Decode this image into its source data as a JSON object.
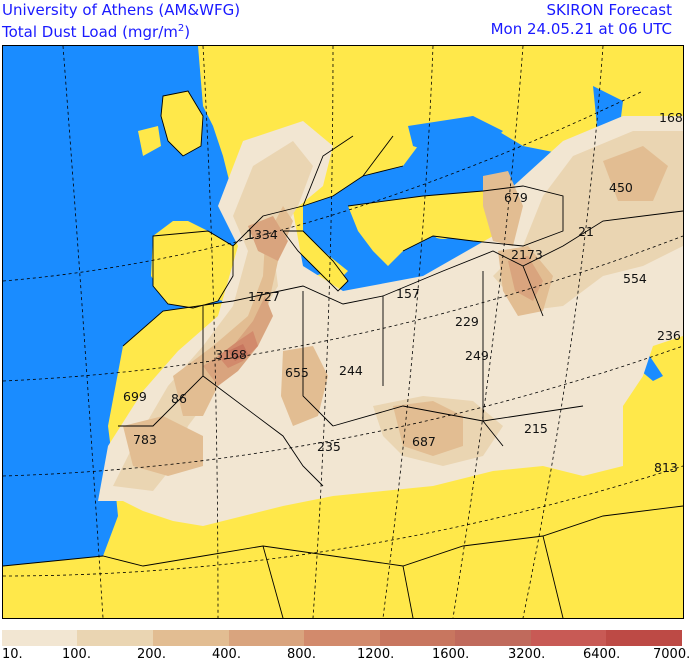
{
  "header": {
    "institution": "University of Athens (AM&WFG)",
    "product_label": "Total Dust Load (mgr/m",
    "product_sup": "2",
    "product_close": ")",
    "forecast_name": "SKIRON Forecast",
    "valid_time": "Mon 24.05.21 at 06 UTC"
  },
  "map": {
    "colors": {
      "sea": "#1a8cff",
      "land_no_dust": "#ffe84a",
      "borders": "#000000",
      "graticule": "#000000"
    },
    "value_labels": [
      "1334",
      "1727",
      "3168",
      "655",
      "244",
      "699",
      "86",
      "783",
      "235",
      "687",
      "215",
      "157",
      "229",
      "249",
      "2173",
      "679",
      "21",
      "450",
      "554",
      "168",
      "236",
      "813"
    ]
  },
  "legend": {
    "tick_labels": [
      "10.",
      "100.",
      "200.",
      "400.",
      "800.",
      "1200.",
      "1600.",
      "3200.",
      "6400.",
      "7000."
    ],
    "colors": [
      "#f2e6d2",
      "#ead5b2",
      "#e2bd92",
      "#d9a47e",
      "#d28a6c",
      "#c8765f",
      "#c06a5c",
      "#c85a55",
      "#bd4a45"
    ]
  }
}
